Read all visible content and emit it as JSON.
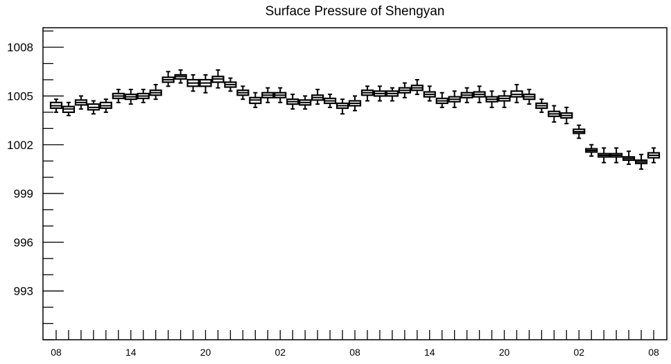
{
  "chart_data": {
    "type": "boxplot",
    "title": "Surface Pressure of Shengyan",
    "xlabel": "",
    "ylabel": "",
    "ylim": [
      990,
      1009.2
    ],
    "y_ticks": [
      993,
      996,
      999,
      1002,
      1005,
      1008
    ],
    "x_tick_labels": [
      "08",
      "14",
      "20",
      "02",
      "08",
      "14",
      "20",
      "02",
      "08"
    ],
    "x_label_steps": [
      0,
      6,
      12,
      18,
      24,
      30,
      36,
      42,
      48
    ],
    "n_steps": 48,
    "grid": false,
    "legend": "none",
    "series": [
      {
        "values": [
          {
            "step": 0,
            "median": 1004.4,
            "q1": 1004.25,
            "q3": 1004.6,
            "min": 1004.0,
            "max": 1004.8
          },
          {
            "step": 1,
            "median": 1004.2,
            "q1": 1004.0,
            "q3": 1004.35,
            "min": 1003.8,
            "max": 1004.6
          },
          {
            "step": 2,
            "median": 1004.6,
            "q1": 1004.45,
            "q3": 1004.75,
            "min": 1004.2,
            "max": 1005.0
          },
          {
            "step": 3,
            "median": 1004.3,
            "q1": 1004.15,
            "q3": 1004.5,
            "min": 1003.9,
            "max": 1004.7
          },
          {
            "step": 4,
            "median": 1004.4,
            "q1": 1004.25,
            "q3": 1004.6,
            "min": 1004.0,
            "max": 1004.8
          },
          {
            "step": 5,
            "median": 1005.0,
            "q1": 1004.85,
            "q3": 1005.15,
            "min": 1004.6,
            "max": 1005.4
          },
          {
            "step": 6,
            "median": 1004.95,
            "q1": 1004.8,
            "q3": 1005.1,
            "min": 1004.5,
            "max": 1005.4
          },
          {
            "step": 7,
            "median": 1005.0,
            "q1": 1004.85,
            "q3": 1005.15,
            "min": 1004.6,
            "max": 1005.4
          },
          {
            "step": 8,
            "median": 1005.2,
            "q1": 1005.05,
            "q3": 1005.35,
            "min": 1004.8,
            "max": 1005.7
          },
          {
            "step": 9,
            "median": 1006.0,
            "q1": 1005.85,
            "q3": 1006.15,
            "min": 1005.6,
            "max": 1006.5
          },
          {
            "step": 10,
            "median": 1006.2,
            "q1": 1006.05,
            "q3": 1006.3,
            "min": 1005.8,
            "max": 1006.6
          },
          {
            "step": 11,
            "median": 1005.8,
            "q1": 1005.6,
            "q3": 1006.0,
            "min": 1005.3,
            "max": 1006.3
          },
          {
            "step": 12,
            "median": 1005.8,
            "q1": 1005.6,
            "q3": 1006.0,
            "min": 1005.2,
            "max": 1006.3
          },
          {
            "step": 13,
            "median": 1006.05,
            "q1": 1005.85,
            "q3": 1006.2,
            "min": 1005.5,
            "max": 1006.6
          },
          {
            "step": 14,
            "median": 1005.7,
            "q1": 1005.55,
            "q3": 1005.85,
            "min": 1005.3,
            "max": 1006.1
          },
          {
            "step": 15,
            "median": 1005.2,
            "q1": 1005.05,
            "q3": 1005.35,
            "min": 1004.8,
            "max": 1005.6
          },
          {
            "step": 16,
            "median": 1004.75,
            "q1": 1004.55,
            "q3": 1004.9,
            "min": 1004.3,
            "max": 1005.2
          },
          {
            "step": 17,
            "median": 1005.05,
            "q1": 1004.9,
            "q3": 1005.2,
            "min": 1004.6,
            "max": 1005.5
          },
          {
            "step": 18,
            "median": 1005.05,
            "q1": 1004.9,
            "q3": 1005.2,
            "min": 1004.6,
            "max": 1005.5
          },
          {
            "step": 19,
            "median": 1004.65,
            "q1": 1004.5,
            "q3": 1004.8,
            "min": 1004.2,
            "max": 1005.1
          },
          {
            "step": 20,
            "median": 1004.6,
            "q1": 1004.45,
            "q3": 1004.75,
            "min": 1004.2,
            "max": 1005.0
          },
          {
            "step": 21,
            "median": 1004.9,
            "q1": 1004.75,
            "q3": 1005.05,
            "min": 1004.5,
            "max": 1005.4
          },
          {
            "step": 22,
            "median": 1004.7,
            "q1": 1004.55,
            "q3": 1004.85,
            "min": 1004.3,
            "max": 1005.1
          },
          {
            "step": 23,
            "median": 1004.4,
            "q1": 1004.25,
            "q3": 1004.55,
            "min": 1003.9,
            "max": 1004.8
          },
          {
            "step": 24,
            "median": 1004.55,
            "q1": 1004.4,
            "q3": 1004.7,
            "min": 1004.1,
            "max": 1005.0
          },
          {
            "step": 25,
            "median": 1005.2,
            "q1": 1005.05,
            "q3": 1005.35,
            "min": 1004.7,
            "max": 1005.6
          },
          {
            "step": 26,
            "median": 1005.15,
            "q1": 1005.0,
            "q3": 1005.3,
            "min": 1004.7,
            "max": 1005.6
          },
          {
            "step": 27,
            "median": 1005.15,
            "q1": 1005.0,
            "q3": 1005.3,
            "min": 1004.7,
            "max": 1005.5
          },
          {
            "step": 28,
            "median": 1005.35,
            "q1": 1005.2,
            "q3": 1005.5,
            "min": 1004.9,
            "max": 1005.8
          },
          {
            "step": 29,
            "median": 1005.5,
            "q1": 1005.35,
            "q3": 1005.65,
            "min": 1005.1,
            "max": 1006.0
          },
          {
            "step": 30,
            "median": 1005.1,
            "q1": 1004.95,
            "q3": 1005.25,
            "min": 1004.7,
            "max": 1005.6
          },
          {
            "step": 31,
            "median": 1004.7,
            "q1": 1004.55,
            "q3": 1004.85,
            "min": 1004.3,
            "max": 1005.2
          },
          {
            "step": 32,
            "median": 1004.8,
            "q1": 1004.65,
            "q3": 1004.95,
            "min": 1004.3,
            "max": 1005.3
          },
          {
            "step": 33,
            "median": 1005.05,
            "q1": 1004.9,
            "q3": 1005.2,
            "min": 1004.6,
            "max": 1005.5
          },
          {
            "step": 34,
            "median": 1005.1,
            "q1": 1004.95,
            "q3": 1005.25,
            "min": 1004.6,
            "max": 1005.6
          },
          {
            "step": 35,
            "median": 1004.8,
            "q1": 1004.65,
            "q3": 1004.95,
            "min": 1004.3,
            "max": 1005.3
          },
          {
            "step": 36,
            "median": 1004.85,
            "q1": 1004.7,
            "q3": 1005.0,
            "min": 1004.3,
            "max": 1005.3
          },
          {
            "step": 37,
            "median": 1005.1,
            "q1": 1004.95,
            "q3": 1005.3,
            "min": 1004.6,
            "max": 1005.7
          },
          {
            "step": 38,
            "median": 1004.95,
            "q1": 1004.8,
            "q3": 1005.1,
            "min": 1004.5,
            "max": 1005.4
          },
          {
            "step": 39,
            "median": 1004.4,
            "q1": 1004.25,
            "q3": 1004.55,
            "min": 1004.0,
            "max": 1004.8
          },
          {
            "step": 40,
            "median": 1003.9,
            "q1": 1003.75,
            "q3": 1004.05,
            "min": 1003.4,
            "max": 1004.4
          },
          {
            "step": 41,
            "median": 1003.8,
            "q1": 1003.65,
            "q3": 1003.95,
            "min": 1003.3,
            "max": 1004.3
          },
          {
            "step": 42,
            "median": 1002.8,
            "q1": 1002.7,
            "q3": 1002.95,
            "min": 1002.4,
            "max": 1003.2
          },
          {
            "step": 43,
            "median": 1001.65,
            "q1": 1001.55,
            "q3": 1001.75,
            "min": 1001.3,
            "max": 1002.0
          },
          {
            "step": 44,
            "median": 1001.35,
            "q1": 1001.25,
            "q3": 1001.45,
            "min": 1000.9,
            "max": 1001.8
          },
          {
            "step": 45,
            "median": 1001.35,
            "q1": 1001.25,
            "q3": 1001.45,
            "min": 1000.9,
            "max": 1001.8
          },
          {
            "step": 46,
            "median": 1001.15,
            "q1": 1001.05,
            "q3": 1001.25,
            "min": 1000.8,
            "max": 1001.6
          },
          {
            "step": 47,
            "median": 1000.95,
            "q1": 1000.85,
            "q3": 1001.05,
            "min": 1000.5,
            "max": 1001.4
          },
          {
            "step": 48,
            "median": 1001.35,
            "q1": 1001.2,
            "q3": 1001.5,
            "min": 1000.9,
            "max": 1001.8
          }
        ]
      }
    ]
  }
}
